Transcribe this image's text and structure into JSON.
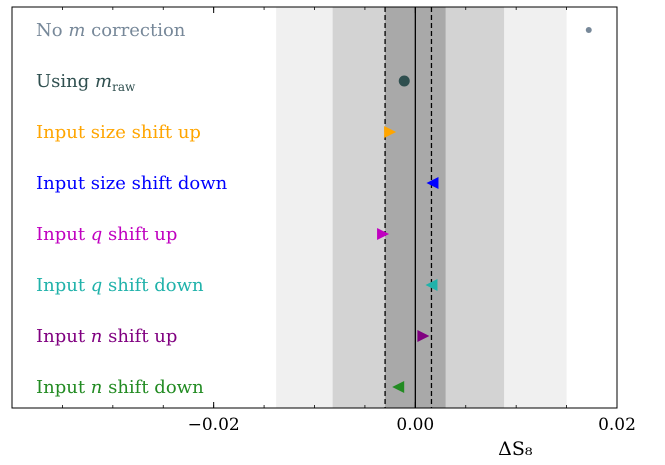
{
  "chart_data": {
    "type": "scatter",
    "xlabel": "ΔS₈",
    "xlim": [
      -0.04,
      0.02
    ],
    "xticks": [
      {
        "value": -0.02,
        "label": "−0.02"
      },
      {
        "value": 0.0,
        "label": "0.00"
      },
      {
        "value": 0.02,
        "label": "0.02"
      }
    ],
    "bands": [
      {
        "range": [
          -0.0138,
          0.015
        ],
        "color": "#f0f0f0"
      },
      {
        "range": [
          -0.0082,
          0.0088
        ],
        "color": "#d3d3d3"
      },
      {
        "range": [
          -0.003,
          0.003
        ],
        "color": "#a9a9a9"
      }
    ],
    "reference_line": 0.0,
    "dashed_lines": [
      -0.003,
      0.0016
    ],
    "grid": false,
    "points": [
      {
        "label": "No ",
        "label_italic": "m",
        "label_after": " correction",
        "x": 0.0172,
        "marker": "small-dot",
        "color": "#778899"
      },
      {
        "label": "Using ",
        "label_italic": "m",
        "label_sub": "raw",
        "label_after": "",
        "x": -0.0011,
        "marker": "dot",
        "color": "#2f4f4f"
      },
      {
        "label": "Input size shift up",
        "label_italic": "",
        "label_after": "",
        "x": -0.0025,
        "marker": "triangle-right",
        "color": "#ffa500"
      },
      {
        "label": "Input size shift down",
        "label_italic": "",
        "label_after": "",
        "x": 0.0017,
        "marker": "triangle-left",
        "color": "#0000ff"
      },
      {
        "label": "Input ",
        "label_italic": "q",
        "label_after": " shift up",
        "x": -0.0032,
        "marker": "triangle-right",
        "color": "#c000c0"
      },
      {
        "label": "Input ",
        "label_italic": "q",
        "label_after": " shift down",
        "x": 0.0016,
        "marker": "triangle-left",
        "color": "#20b2aa"
      },
      {
        "label": "Input ",
        "label_italic": "n",
        "label_after": " shift up",
        "x": 0.0008,
        "marker": "triangle-right",
        "color": "#800080"
      },
      {
        "label": "Input ",
        "label_italic": "n",
        "label_after": " shift down",
        "x": -0.0017,
        "marker": "triangle-left",
        "color": "#228b22"
      }
    ]
  }
}
